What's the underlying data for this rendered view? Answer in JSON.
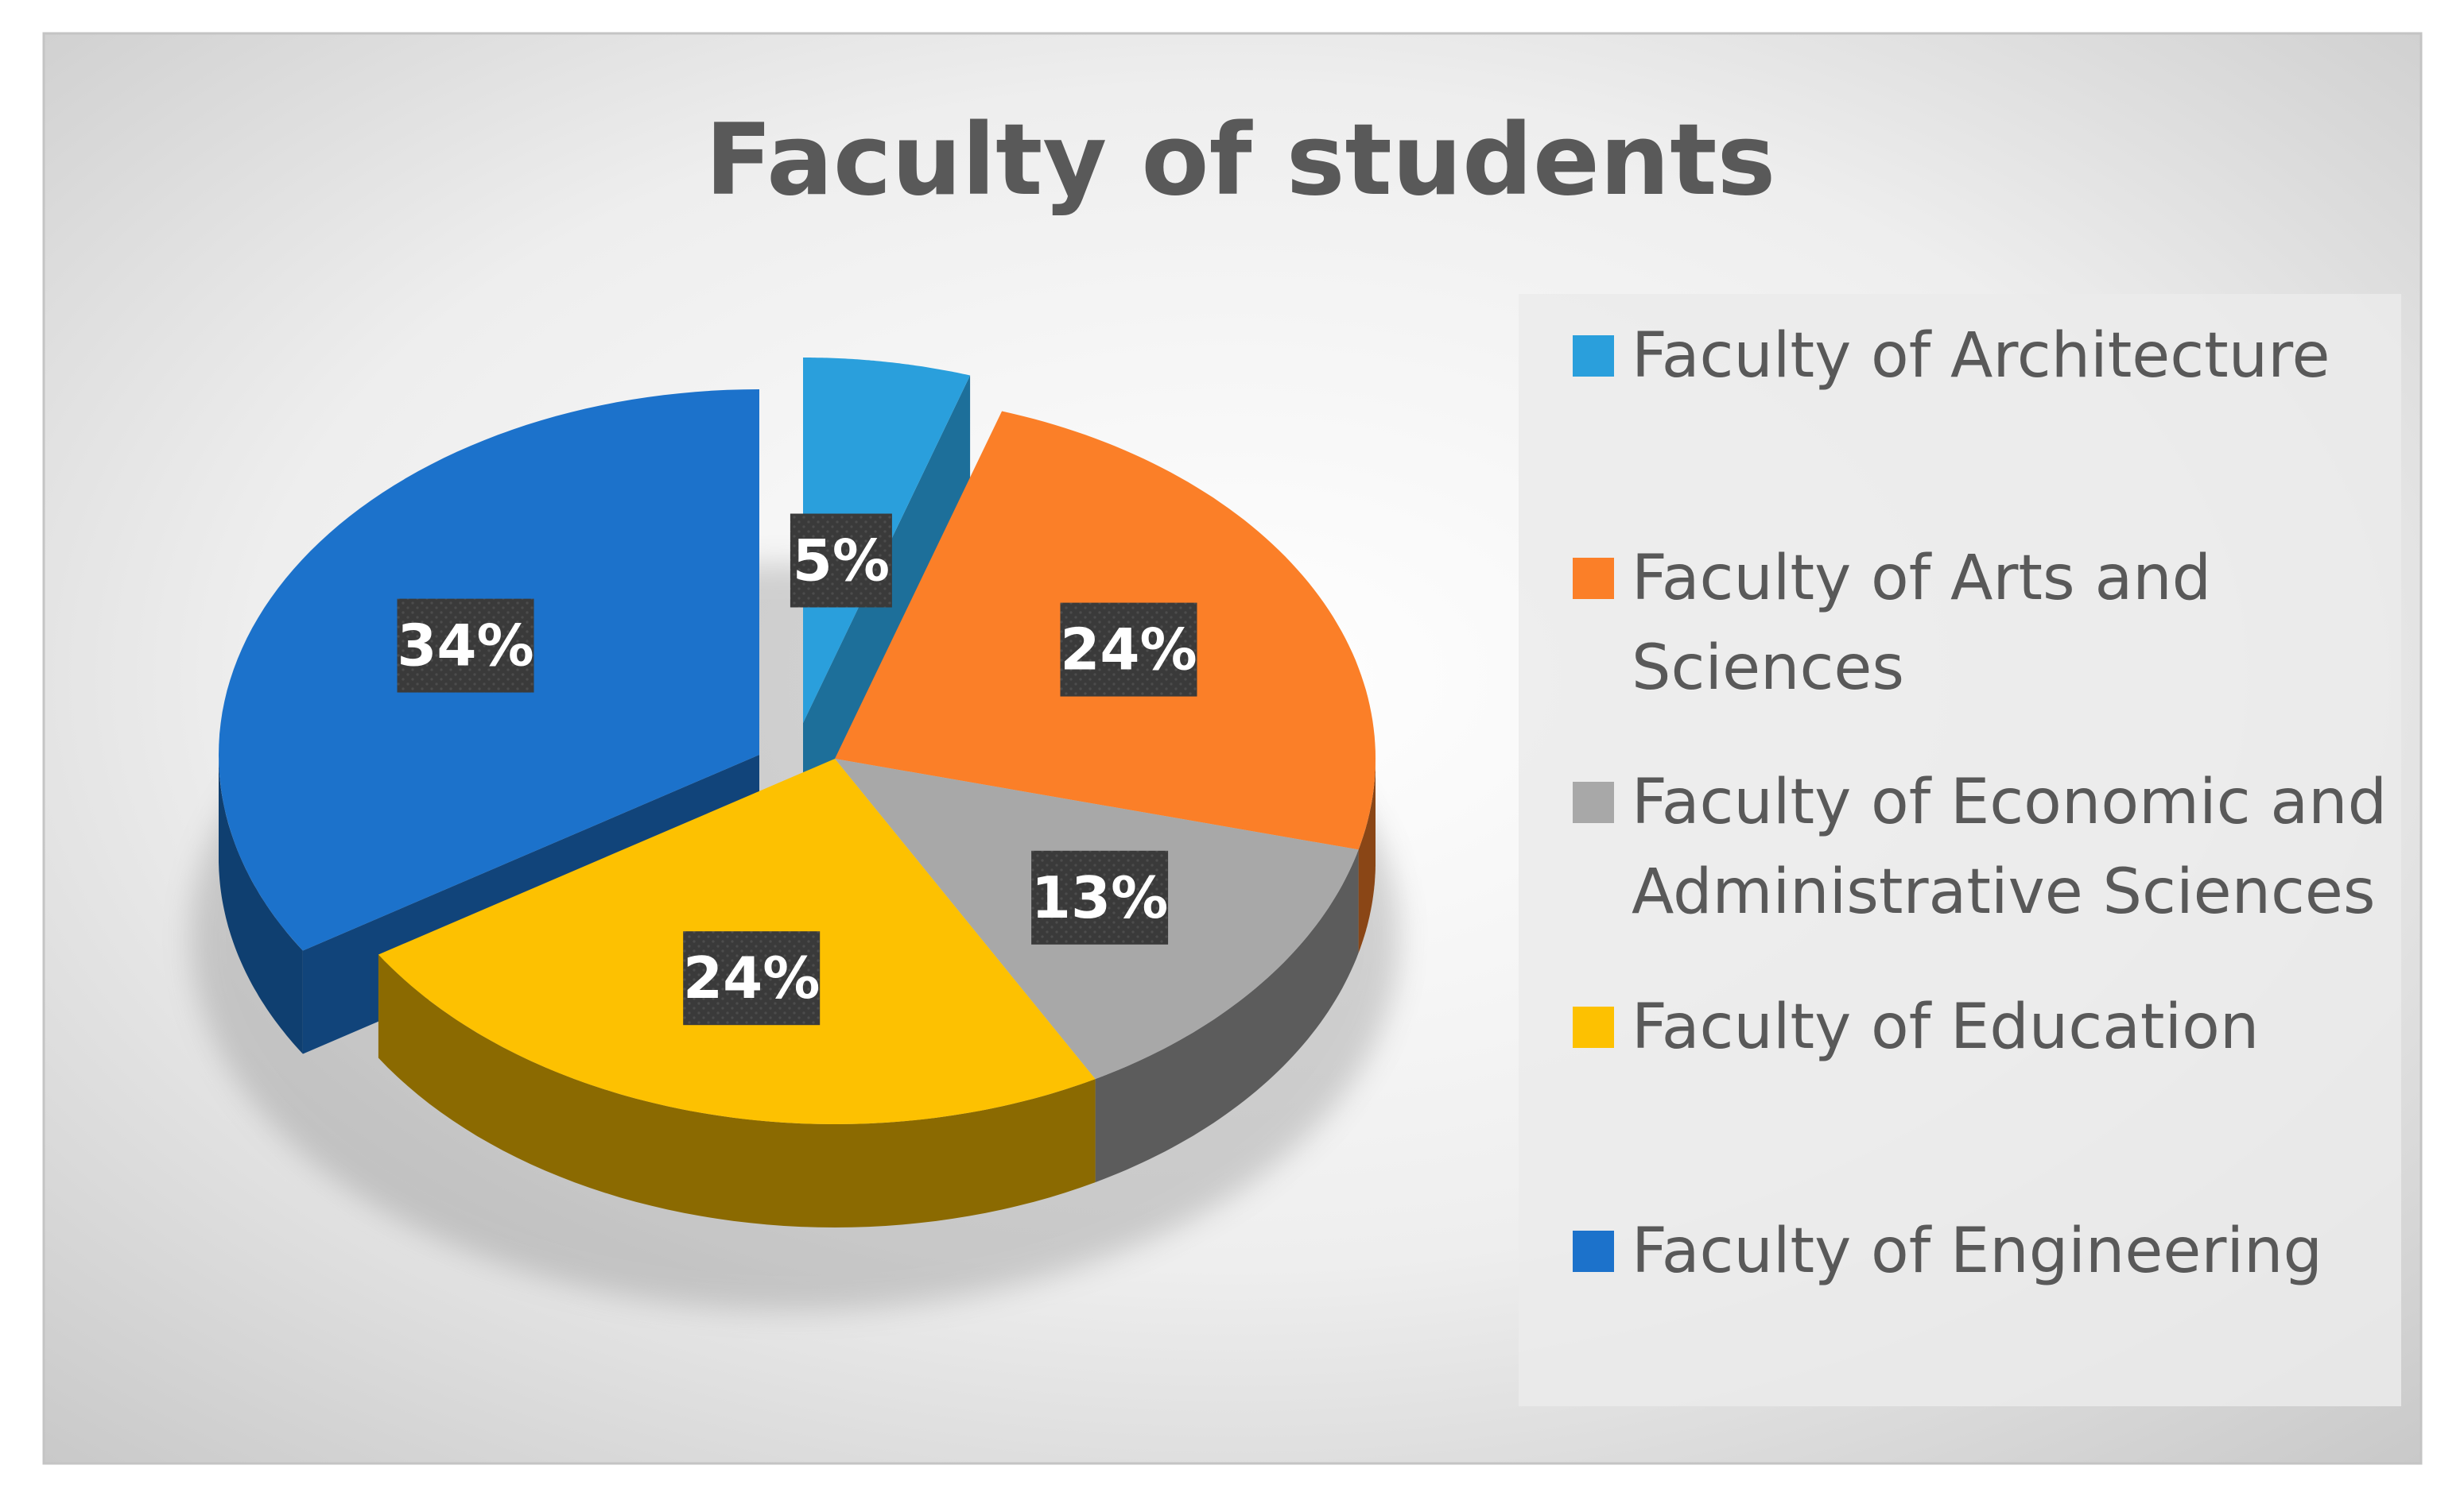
{
  "chart_data": {
    "type": "pie",
    "title": "Faculty of students",
    "categories": [
      "Faculty of Architecture",
      "Faculty of Arts and Sciences",
      "Faculty of Economic and Administrative Sciences",
      "Faculty of Education",
      "Faculty of Engineering"
    ],
    "values": [
      5,
      24,
      13,
      24,
      34
    ],
    "data_labels": [
      "5%",
      "24%",
      "13%",
      "24%",
      "34%"
    ],
    "colors": [
      "#2a9fdc",
      "#fb7f28",
      "#a8a8a8",
      "#fdc101",
      "#1c72cb"
    ],
    "legend_items": [
      {
        "lines": [
          "Faculty of Architecture"
        ],
        "color": "#2a9fdc"
      },
      {
        "lines": [
          "Faculty of Arts and",
          "Sciences"
        ],
        "color": "#fb7f28"
      },
      {
        "lines": [
          "Faculty of Economic and",
          "Administrative Sciences"
        ],
        "color": "#a8a8a8"
      },
      {
        "lines": [
          "Faculty of Education"
        ],
        "color": "#fdc101"
      },
      {
        "lines": [
          "Faculty of Engineering"
        ],
        "color": "#1c72cb"
      }
    ],
    "legend_position": "right",
    "exploded_slices": [
      "Faculty of Architecture",
      "Faculty of Engineering"
    ],
    "style": "3d-pie"
  }
}
